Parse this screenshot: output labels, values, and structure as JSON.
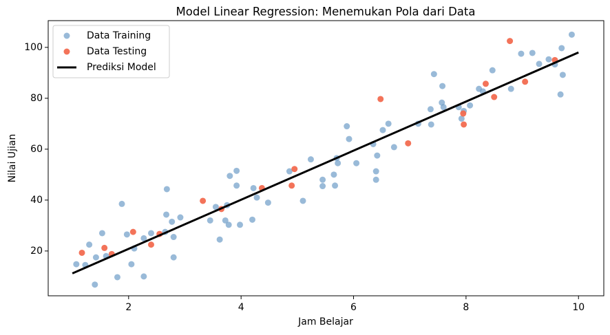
{
  "chart_data": {
    "type": "scatter",
    "title": "Model Linear Regression: Menemukan Pola dari Data",
    "xlabel": "Jam Belajar",
    "ylabel": "Nilai Ujian",
    "xlim": [
      0.57,
      10.45
    ],
    "ylim": [
      2.4,
      110.5
    ],
    "xticks": [
      2,
      4,
      6,
      8,
      10
    ],
    "yticks": [
      20,
      40,
      60,
      80,
      100
    ],
    "grid": false,
    "legend": "upper left",
    "series": [
      {
        "name": "Data Training",
        "type": "scatter",
        "color": "#6e9cc8",
        "x": [
          1.07,
          1.23,
          1.3,
          1.42,
          1.4,
          1.53,
          1.6,
          1.8,
          1.88,
          1.97,
          2.05,
          2.1,
          2.27,
          2.27,
          2.4,
          2.65,
          2.67,
          2.68,
          2.77,
          2.8,
          2.8,
          2.92,
          3.45,
          3.55,
          3.62,
          3.72,
          3.75,
          3.78,
          3.8,
          3.92,
          3.92,
          3.98,
          4.2,
          4.22,
          4.28,
          4.48,
          4.86,
          5.1,
          5.24,
          5.45,
          5.45,
          5.65,
          5.67,
          5.7,
          5.72,
          5.88,
          5.92,
          6.05,
          6.35,
          6.4,
          6.4,
          6.42,
          6.52,
          6.62,
          6.72,
          7.15,
          7.37,
          7.38,
          7.43,
          7.57,
          7.58,
          7.6,
          7.87,
          7.92,
          7.96,
          8.07,
          8.23,
          8.3,
          8.47,
          8.8,
          8.98,
          9.18,
          9.3,
          9.47,
          9.58,
          9.68,
          9.7,
          9.72,
          9.88
        ],
        "values": [
          14.8,
          14.5,
          22.5,
          17.5,
          6.8,
          27,
          18,
          9.7,
          38.5,
          26.5,
          14.8,
          21,
          25,
          10,
          27,
          27.5,
          34.3,
          44.3,
          31.5,
          17.5,
          25.5,
          33.2,
          32,
          37.3,
          24.5,
          32,
          38,
          30.3,
          49.5,
          51.5,
          45.7,
          30.3,
          32.3,
          44.7,
          41,
          39,
          51.3,
          39.7,
          56,
          48,
          45.5,
          50,
          45.7,
          56.5,
          54.5,
          69,
          64,
          54.5,
          62,
          51.3,
          48,
          57.5,
          67.5,
          70,
          60.8,
          70,
          75.7,
          69.7,
          89.5,
          78.3,
          84.8,
          76.5,
          76.5,
          72,
          75,
          77.2,
          83.7,
          82.7,
          91,
          83.7,
          97.5,
          97.8,
          93.5,
          95.3,
          93.3,
          81.5,
          99.7,
          89.2,
          105
        ]
      },
      {
        "name": "Data Testing",
        "type": "scatter",
        "color": "#f26b50",
        "x": [
          1.17,
          1.57,
          1.7,
          2.08,
          2.4,
          2.55,
          3.32,
          3.65,
          4.37,
          4.9,
          4.95,
          6.48,
          6.97,
          7.95,
          7.96,
          8.35,
          8.5,
          8.78,
          9.05,
          9.58
        ],
        "values": [
          19.3,
          21.2,
          18.8,
          27.5,
          22.5,
          26.7,
          39.7,
          36.5,
          44.7,
          45.7,
          52.2,
          79.7,
          62.3,
          74,
          69.7,
          85.7,
          80.5,
          102.5,
          86.5,
          95
        ]
      },
      {
        "name": "Prediksi Model",
        "type": "line",
        "color": "#000000",
        "x": [
          1,
          10
        ],
        "values": [
          11.2,
          98
        ]
      }
    ]
  }
}
